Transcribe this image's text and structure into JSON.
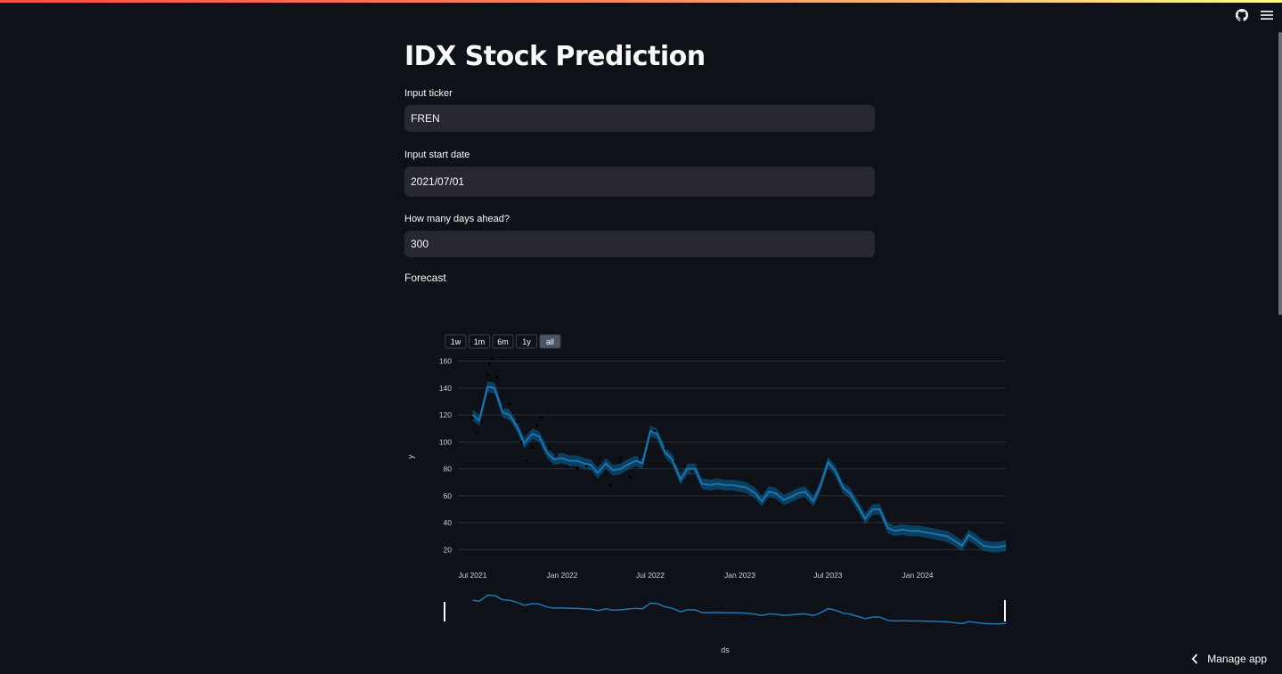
{
  "app": {
    "title": "IDX Stock Prediction",
    "accent_gradient": [
      "#ff4b4b",
      "#fffd80"
    ],
    "background": "#0e1117"
  },
  "header": {
    "icons": [
      "github-icon",
      "menu-icon"
    ]
  },
  "form": {
    "ticker": {
      "label": "Input ticker",
      "value": "FREN"
    },
    "start_date": {
      "label": "Input start date",
      "value": "2021/07/01"
    },
    "days_ahead": {
      "label": "How many days ahead?",
      "value": "300"
    }
  },
  "forecast": {
    "label": "Forecast"
  },
  "footer": {
    "manage_app_label": "Manage app"
  },
  "chart_data": {
    "type": "line",
    "title": "",
    "xlabel": "ds",
    "ylabel": "y",
    "range_buttons": [
      "1w",
      "1m",
      "6m",
      "1y",
      "all"
    ],
    "active_range": "all",
    "x_ticks": [
      "Jul 2021",
      "Jan 2022",
      "Jul 2022",
      "Jan 2023",
      "Jul 2023",
      "Jan 2024"
    ],
    "y_ticks": [
      20,
      40,
      60,
      80,
      100,
      120,
      140,
      160
    ],
    "xlim": [
      "2021-06-01",
      "2024-06-30"
    ],
    "ylim": [
      13,
      165
    ],
    "grid": true,
    "colors": {
      "forecast": "#1f77b4",
      "uncertainty": "#0b4f7a",
      "actual": "#000000"
    },
    "series": [
      {
        "name": "yhat",
        "x": [
          "2021-07-01",
          "2021-07-15",
          "2021-08-01",
          "2021-08-15",
          "2021-09-01",
          "2021-09-15",
          "2021-10-01",
          "2021-10-15",
          "2021-11-01",
          "2021-11-15",
          "2021-12-01",
          "2021-12-15",
          "2022-01-01",
          "2022-01-15",
          "2022-02-01",
          "2022-02-15",
          "2022-03-01",
          "2022-03-15",
          "2022-04-01",
          "2022-04-15",
          "2022-05-01",
          "2022-05-15",
          "2022-06-01",
          "2022-06-15",
          "2022-07-01",
          "2022-07-15",
          "2022-08-01",
          "2022-08-15",
          "2022-09-01",
          "2022-09-15",
          "2022-10-01",
          "2022-10-15",
          "2022-11-01",
          "2022-11-15",
          "2022-12-01",
          "2022-12-15",
          "2023-01-01",
          "2023-01-15",
          "2023-02-01",
          "2023-02-15",
          "2023-03-01",
          "2023-03-15",
          "2023-04-01",
          "2023-04-15",
          "2023-05-01",
          "2023-05-15",
          "2023-06-01",
          "2023-06-15",
          "2023-07-01",
          "2023-07-15",
          "2023-08-01",
          "2023-08-15",
          "2023-09-01",
          "2023-09-15",
          "2023-10-01",
          "2023-10-15",
          "2023-11-01",
          "2023-11-15",
          "2023-12-01",
          "2023-12-15",
          "2024-01-01",
          "2024-01-15",
          "2024-02-01",
          "2024-02-15",
          "2024-03-01",
          "2024-03-15",
          "2024-04-01",
          "2024-04-15",
          "2024-05-01",
          "2024-05-15",
          "2024-06-01",
          "2024-06-15",
          "2024-06-30"
        ],
        "values": [
          120,
          116,
          141,
          140,
          122,
          120,
          111,
          99,
          106,
          104,
          92,
          87,
          88,
          86,
          86,
          84,
          83,
          77,
          84,
          79,
          80,
          83,
          86,
          84,
          108,
          106,
          92,
          87,
          72,
          80,
          80,
          69,
          68,
          69,
          68,
          68,
          67,
          66,
          62,
          56,
          63,
          62,
          57,
          59,
          62,
          63,
          56,
          67,
          85,
          79,
          66,
          62,
          52,
          43,
          50,
          50,
          36,
          34,
          35,
          34,
          34,
          33,
          32,
          31,
          30,
          27,
          23,
          31,
          27,
          23,
          22,
          22,
          23
        ]
      },
      {
        "name": "y",
        "x": [
          "2021-07-01",
          "2021-07-10",
          "2021-07-20",
          "2021-08-01",
          "2021-08-05",
          "2021-08-10",
          "2021-08-20",
          "2021-09-01",
          "2021-09-15",
          "2021-10-01",
          "2021-10-10",
          "2021-10-20",
          "2021-11-01",
          "2021-11-10",
          "2021-11-20",
          "2021-12-05",
          "2021-12-20",
          "2022-01-10",
          "2022-02-01",
          "2022-02-20",
          "2022-03-20",
          "2022-04-10",
          "2022-05-01",
          "2022-05-20",
          "2022-06-10",
          "2022-06-25",
          "2022-07-10",
          "2022-08-01",
          "2022-08-20",
          "2022-09-10",
          "2022-09-25"
        ],
        "values": [
          118,
          107,
          115,
          150,
          158,
          162,
          148,
          125,
          128,
          115,
          100,
          86,
          96,
          112,
          118,
          95,
          90,
          82,
          80,
          82,
          88,
          68,
          88,
          74,
          88,
          92,
          108,
          95,
          85,
          82,
          78
        ]
      }
    ]
  }
}
